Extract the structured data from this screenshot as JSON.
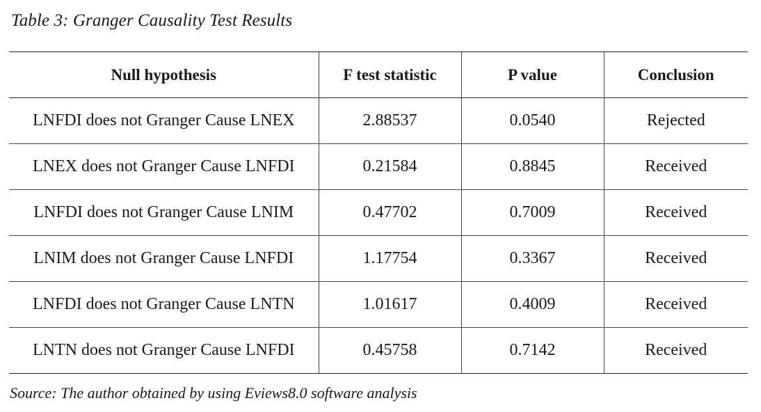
{
  "caption": "Table 3: Granger Causality Test Results",
  "table": {
    "headers": [
      "Null hypothesis",
      "F test statistic",
      "P value",
      "Conclusion"
    ],
    "rows": [
      [
        "LNFDI does not Granger Cause LNEX",
        "2.88537",
        "0.0540",
        "Rejected"
      ],
      [
        "LNEX does not Granger Cause LNFDI",
        "0.21584",
        "0.8845",
        "Received"
      ],
      [
        "LNFDI does not Granger Cause LNIM",
        "0.47702",
        "0.7009",
        "Received"
      ],
      [
        "LNIM does not Granger Cause LNFDI",
        "1.17754",
        "0.3367",
        "Received"
      ],
      [
        "LNFDI does not Granger Cause LNTN",
        "1.01617",
        "0.4009",
        "Received"
      ],
      [
        "LNTN does not Granger Cause LNFDI",
        "0.45758",
        "0.7142",
        "Received"
      ]
    ]
  },
  "source": "Source: The author obtained by using Eviews8.0 software analysis"
}
